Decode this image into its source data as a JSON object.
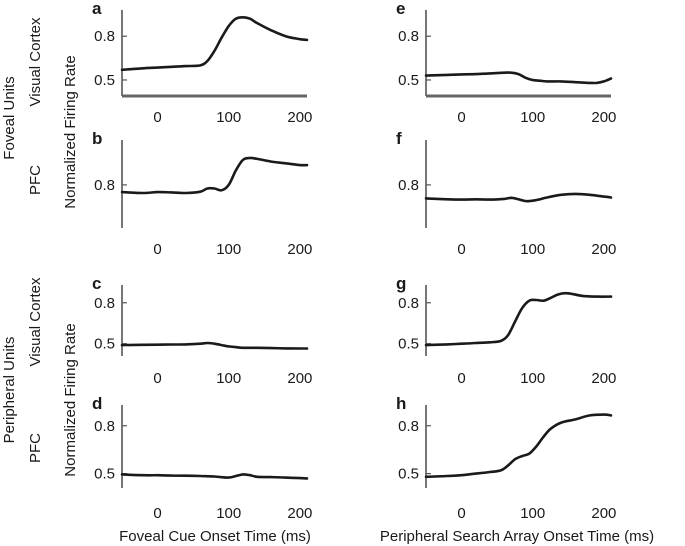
{
  "figure": {
    "group_labels": [
      "Foveal Units",
      "Peripheral Units"
    ],
    "area_labels": [
      "Visual Cortex",
      "PFC",
      "Visual Cortex",
      "PFC"
    ],
    "ylabel_top": "Normalized Firing Rate",
    "ylabel_bottom": "Normalized Firing Rate",
    "xlabel_left": "Foveal Cue Onset Time (ms)",
    "xlabel_right": "Peripheral Search Array Onset Time (ms)"
  },
  "chart_data": [
    {
      "panel": "a",
      "type": "line",
      "row": 0,
      "col": 0,
      "xlim": [
        -50,
        210
      ],
      "ylim": [
        0.39,
        0.98
      ],
      "xticks": [
        0,
        100,
        200
      ],
      "yticks": [
        0.5,
        0.8
      ],
      "ytick_labels": [
        "0.5",
        "0.8"
      ],
      "xtick_labels": [
        "0",
        "100",
        "200"
      ],
      "baseline_axis": true,
      "x": [
        -50,
        -20,
        0,
        20,
        40,
        60,
        70,
        80,
        90,
        100,
        110,
        120,
        130,
        140,
        160,
        180,
        200,
        210
      ],
      "y": [
        0.57,
        0.58,
        0.585,
        0.59,
        0.595,
        0.6,
        0.63,
        0.7,
        0.79,
        0.87,
        0.92,
        0.93,
        0.92,
        0.89,
        0.84,
        0.8,
        0.78,
        0.775
      ]
    },
    {
      "panel": "b",
      "type": "line",
      "row": 1,
      "col": 0,
      "xlim": [
        -50,
        210
      ],
      "ylim": [
        0.56,
        1.05
      ],
      "xticks": [
        0,
        100,
        200
      ],
      "yticks": [
        0.8
      ],
      "ytick_labels": [
        "0.8"
      ],
      "xtick_labels": [
        "0",
        "100",
        "200"
      ],
      "x": [
        -50,
        -20,
        0,
        20,
        40,
        60,
        70,
        80,
        90,
        100,
        110,
        120,
        130,
        140,
        160,
        180,
        200,
        210
      ],
      "y": [
        0.76,
        0.755,
        0.76,
        0.758,
        0.755,
        0.762,
        0.78,
        0.78,
        0.77,
        0.8,
        0.88,
        0.94,
        0.95,
        0.945,
        0.93,
        0.92,
        0.91,
        0.91
      ]
    },
    {
      "panel": "c",
      "type": "line",
      "row": 2,
      "col": 0,
      "xlim": [
        -50,
        210
      ],
      "ylim": [
        0.41,
        0.93
      ],
      "xticks": [
        0,
        100,
        200
      ],
      "yticks": [
        0.5,
        0.8
      ],
      "ytick_labels": [
        "0.5",
        "0.8"
      ],
      "xtick_labels": [
        "0",
        "100",
        "200"
      ],
      "x": [
        -50,
        -20,
        0,
        20,
        40,
        60,
        70,
        80,
        90,
        100,
        110,
        120,
        140,
        160,
        180,
        200,
        210
      ],
      "y": [
        0.49,
        0.492,
        0.493,
        0.494,
        0.495,
        0.5,
        0.505,
        0.5,
        0.49,
        0.48,
        0.475,
        0.47,
        0.47,
        0.468,
        0.466,
        0.465,
        0.465
      ]
    },
    {
      "panel": "d",
      "type": "line",
      "row": 3,
      "col": 0,
      "xlim": [
        -50,
        210
      ],
      "ylim": [
        0.41,
        0.93
      ],
      "xticks": [
        0,
        100,
        200
      ],
      "yticks": [
        0.5,
        0.8
      ],
      "ytick_labels": [
        "0.5",
        "0.8"
      ],
      "xtick_labels": [
        "0",
        "100",
        "200"
      ],
      "x": [
        -50,
        -20,
        0,
        20,
        40,
        60,
        80,
        100,
        110,
        120,
        130,
        140,
        160,
        180,
        200,
        210
      ],
      "y": [
        0.495,
        0.49,
        0.49,
        0.488,
        0.487,
        0.485,
        0.482,
        0.475,
        0.485,
        0.495,
        0.49,
        0.48,
        0.478,
        0.475,
        0.472,
        0.47
      ]
    },
    {
      "panel": "e",
      "type": "line",
      "row": 0,
      "col": 1,
      "xlim": [
        -50,
        210
      ],
      "ylim": [
        0.39,
        0.98
      ],
      "xticks": [
        0,
        100,
        200
      ],
      "yticks": [
        0.5,
        0.8
      ],
      "ytick_labels": [
        "0.5",
        "0.8"
      ],
      "xtick_labels": [
        "0",
        "100",
        "200"
      ],
      "baseline_axis": true,
      "x": [
        -50,
        -20,
        0,
        20,
        40,
        60,
        70,
        80,
        90,
        100,
        110,
        120,
        140,
        160,
        180,
        190,
        200,
        210
      ],
      "y": [
        0.53,
        0.535,
        0.538,
        0.54,
        0.545,
        0.55,
        0.55,
        0.54,
        0.515,
        0.5,
        0.495,
        0.49,
        0.49,
        0.485,
        0.48,
        0.48,
        0.49,
        0.51
      ]
    },
    {
      "panel": "f",
      "type": "line",
      "row": 1,
      "col": 1,
      "xlim": [
        -50,
        210
      ],
      "ylim": [
        0.56,
        1.05
      ],
      "xticks": [
        0,
        100,
        200
      ],
      "yticks": [
        0.8
      ],
      "ytick_labels": [
        "0.8"
      ],
      "xtick_labels": [
        "0",
        "100",
        "200"
      ],
      "x": [
        -50,
        -20,
        0,
        20,
        40,
        60,
        70,
        80,
        90,
        100,
        110,
        120,
        140,
        160,
        180,
        200,
        210
      ],
      "y": [
        0.725,
        0.72,
        0.718,
        0.72,
        0.718,
        0.722,
        0.728,
        0.72,
        0.71,
        0.712,
        0.72,
        0.73,
        0.745,
        0.75,
        0.745,
        0.735,
        0.73
      ]
    },
    {
      "panel": "g",
      "type": "line",
      "row": 2,
      "col": 1,
      "xlim": [
        -50,
        210
      ],
      "ylim": [
        0.41,
        0.93
      ],
      "xticks": [
        0,
        100,
        200
      ],
      "yticks": [
        0.5,
        0.8
      ],
      "ytick_labels": [
        "0.5",
        "0.8"
      ],
      "xtick_labels": [
        "0",
        "100",
        "200"
      ],
      "x": [
        -50,
        -20,
        0,
        20,
        40,
        55,
        65,
        75,
        85,
        95,
        105,
        115,
        125,
        135,
        145,
        155,
        170,
        190,
        210
      ],
      "y": [
        0.49,
        0.495,
        0.5,
        0.505,
        0.51,
        0.52,
        0.56,
        0.66,
        0.76,
        0.815,
        0.82,
        0.815,
        0.835,
        0.86,
        0.87,
        0.865,
        0.85,
        0.845,
        0.845
      ]
    },
    {
      "panel": "h",
      "type": "line",
      "row": 3,
      "col": 1,
      "xlim": [
        -50,
        210
      ],
      "ylim": [
        0.41,
        0.93
      ],
      "xticks": [
        0,
        100,
        200
      ],
      "yticks": [
        0.5,
        0.8
      ],
      "ytick_labels": [
        "0.5",
        "0.8"
      ],
      "xtick_labels": [
        "0",
        "100",
        "200"
      ],
      "x": [
        -50,
        -20,
        0,
        20,
        40,
        55,
        65,
        75,
        85,
        95,
        105,
        115,
        125,
        140,
        160,
        180,
        200,
        210
      ],
      "y": [
        0.48,
        0.485,
        0.49,
        0.5,
        0.51,
        0.52,
        0.55,
        0.59,
        0.61,
        0.625,
        0.67,
        0.73,
        0.78,
        0.82,
        0.84,
        0.865,
        0.87,
        0.865
      ]
    }
  ]
}
